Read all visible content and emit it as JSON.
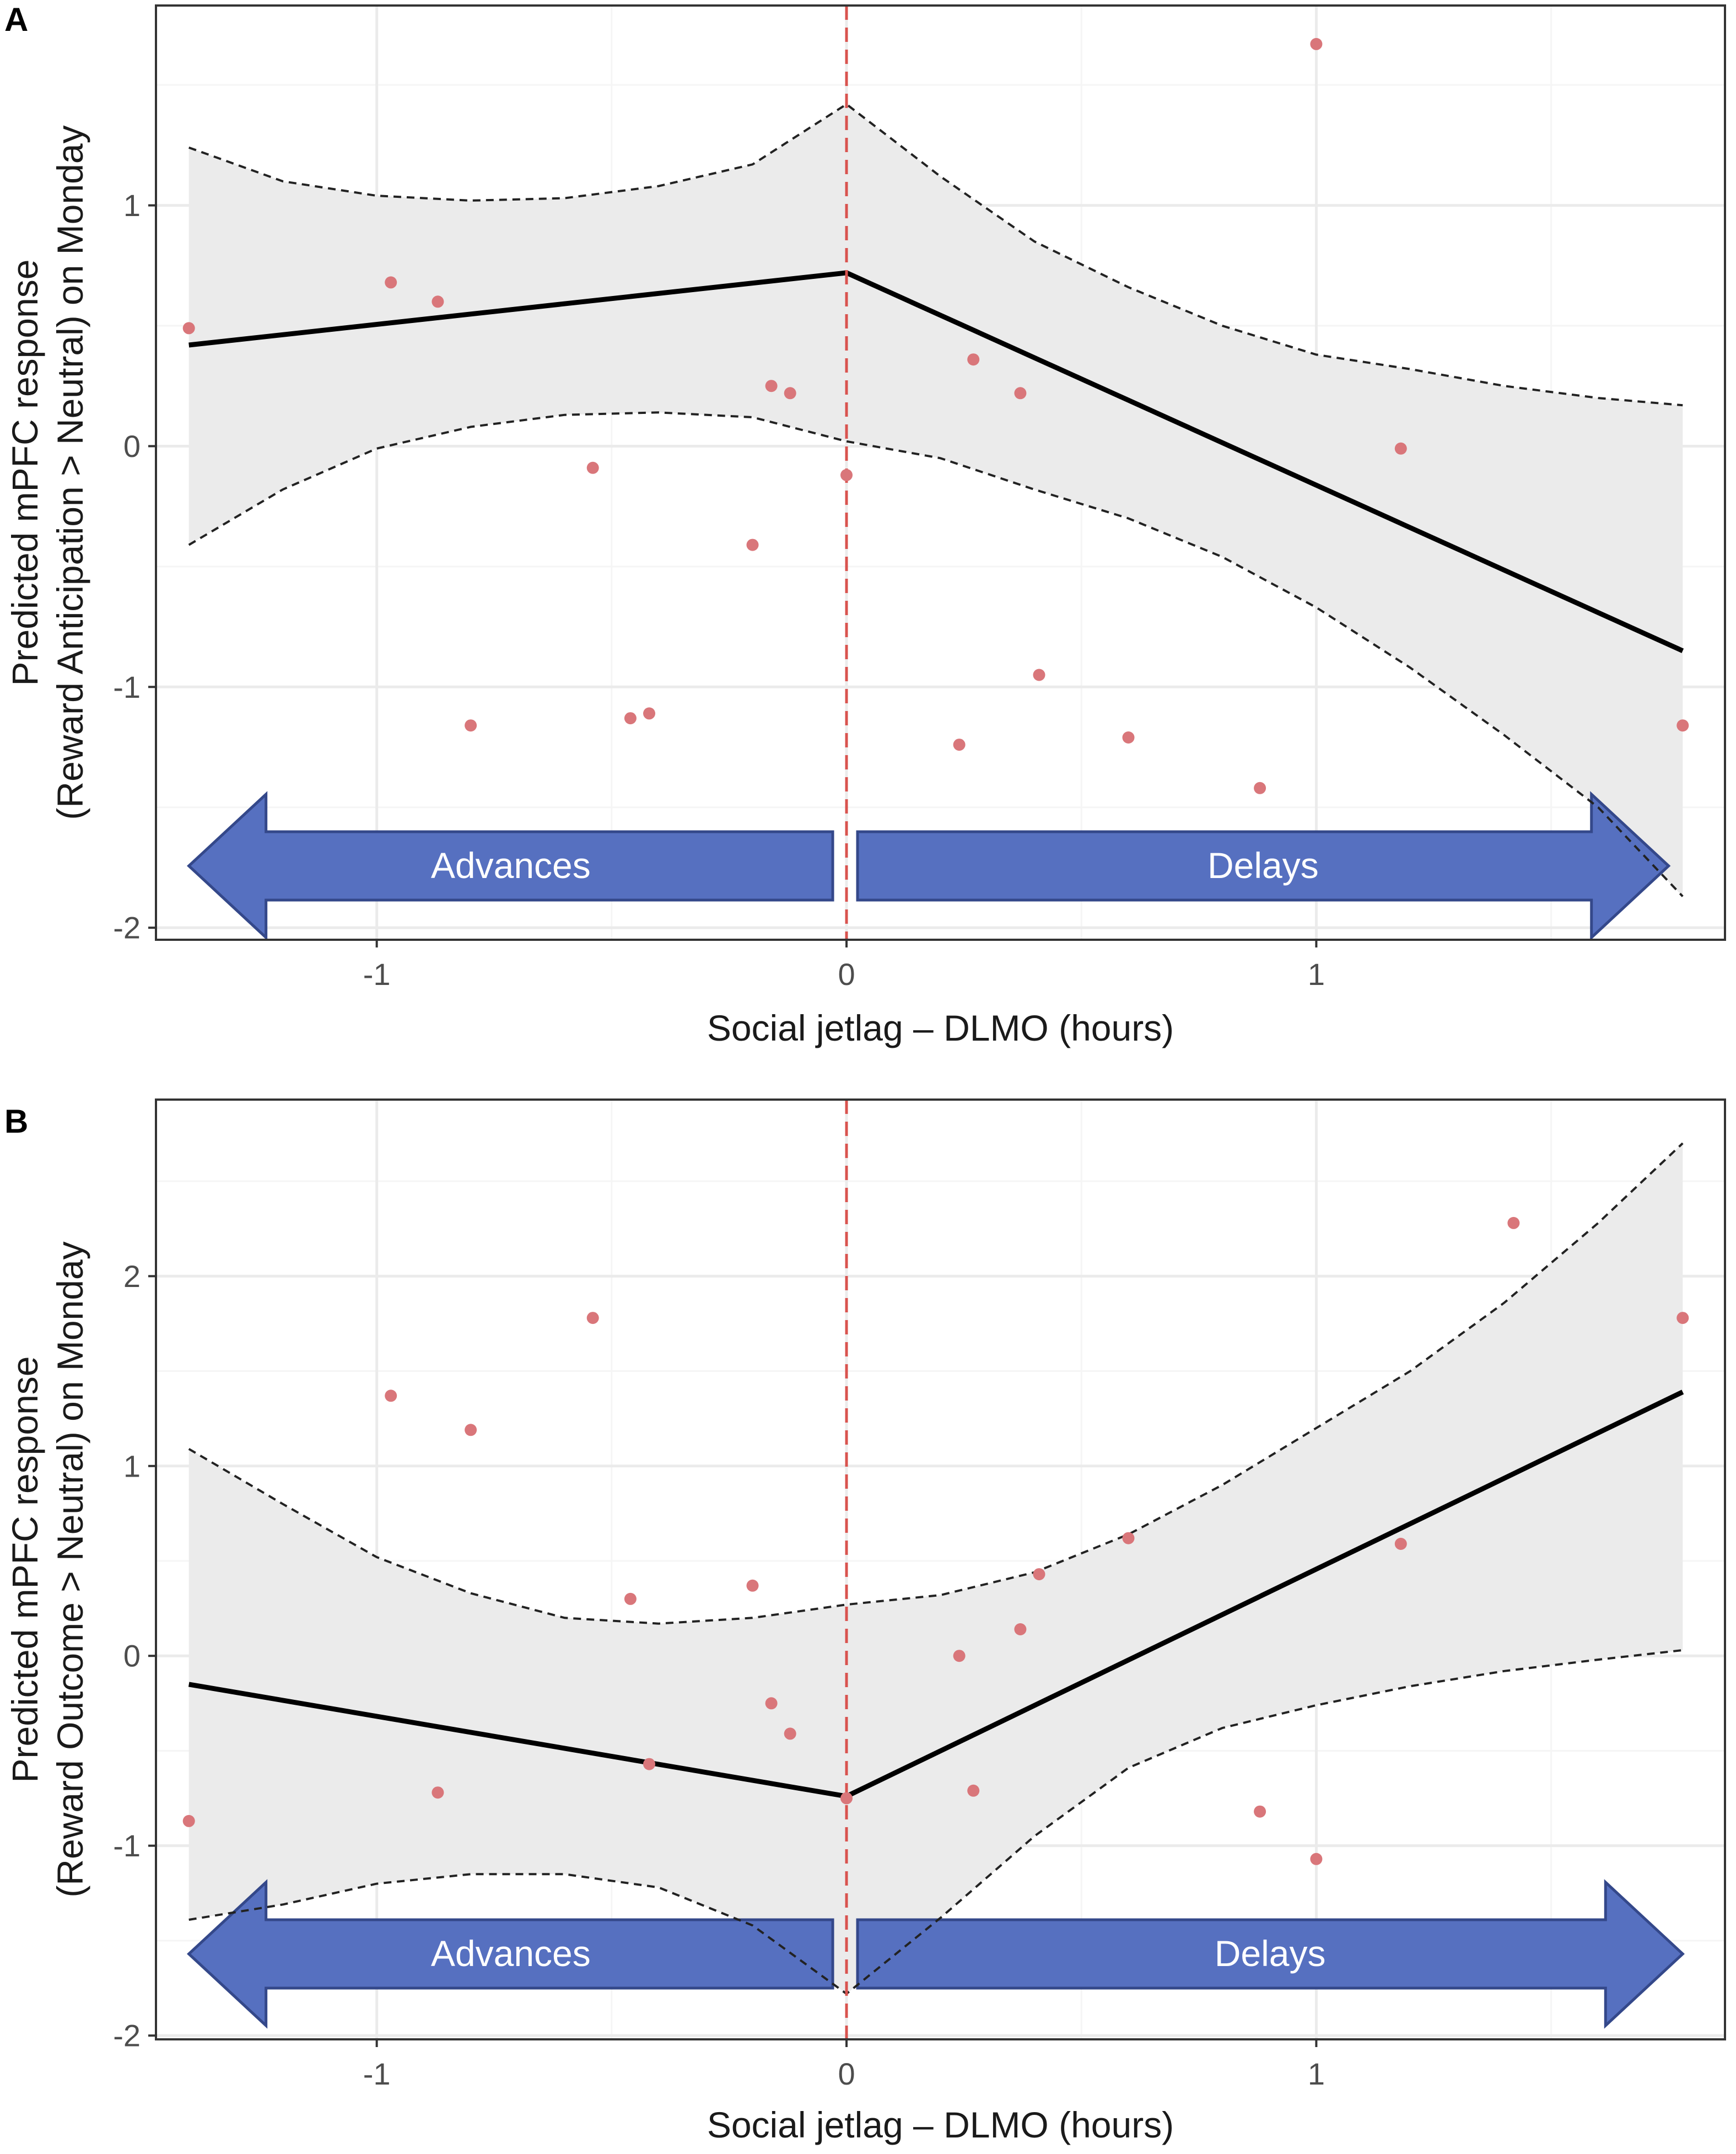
{
  "chart_data": [
    {
      "type": "line",
      "panel_label": "A",
      "xlabel": "Social jetlag – DLMO (hours)",
      "ylabel": [
        "Predicted mPFC response",
        "(Reward Anticipation > Neutral) on Monday"
      ],
      "xlim": [
        -1.47,
        1.87
      ],
      "ylim": [
        -2.05,
        1.83
      ],
      "xticks": [
        -1,
        0,
        1
      ],
      "xtick_labels": [
        "-1",
        "0",
        "1"
      ],
      "yticks": [
        -2,
        -1,
        0,
        1
      ],
      "ytick_labels": [
        "-2",
        "-1",
        "0",
        "1"
      ],
      "grid": true,
      "reference_line_x": 0,
      "series": [
        {
          "name": "fitted",
          "style": "solid",
          "x": [
            -1.4,
            0,
            1.78
          ],
          "y": [
            0.42,
            0.72,
            -0.85
          ]
        },
        {
          "name": "upper CI",
          "style": "dashed",
          "x": [
            -1.4,
            -1.2,
            -1.0,
            -0.8,
            -0.6,
            -0.4,
            -0.2,
            0,
            0.2,
            0.4,
            0.6,
            0.8,
            1.0,
            1.2,
            1.4,
            1.6,
            1.78
          ],
          "y": [
            1.24,
            1.1,
            1.04,
            1.02,
            1.03,
            1.08,
            1.17,
            1.42,
            1.12,
            0.85,
            0.66,
            0.5,
            0.38,
            0.32,
            0.25,
            0.2,
            0.17
          ]
        },
        {
          "name": "lower CI",
          "style": "dashed",
          "x": [
            -1.4,
            -1.2,
            -1.0,
            -0.8,
            -0.6,
            -0.4,
            -0.2,
            0,
            0.2,
            0.4,
            0.6,
            0.8,
            1.0,
            1.2,
            1.4,
            1.6,
            1.78
          ],
          "y": [
            -0.41,
            -0.18,
            -0.01,
            0.08,
            0.13,
            0.14,
            0.12,
            0.02,
            -0.05,
            -0.18,
            -0.3,
            -0.46,
            -0.67,
            -0.92,
            -1.2,
            -1.5,
            -1.87
          ]
        },
        {
          "name": "observations",
          "style": "points",
          "x": [
            -1.4,
            -0.97,
            -0.87,
            -0.8,
            -0.54,
            -0.46,
            -0.42,
            -0.2,
            -0.16,
            -0.12,
            0,
            0.24,
            0.27,
            0.37,
            0.41,
            0.6,
            0.88,
            1.0,
            1.18,
            1.78
          ],
          "y": [
            0.49,
            0.68,
            0.6,
            -1.16,
            -0.09,
            -1.13,
            -1.11,
            -0.41,
            0.25,
            0.22,
            -0.12,
            -1.24,
            0.36,
            0.22,
            -0.95,
            -1.21,
            -1.42,
            1.67,
            -0.01,
            -1.16
          ]
        }
      ],
      "arrows": [
        {
          "label": "Advances",
          "direction": "left",
          "x_from": 0,
          "x_to": -1.4
        },
        {
          "label": "Delays",
          "direction": "right",
          "x_from": 0,
          "x_to": 1.75
        }
      ]
    },
    {
      "type": "line",
      "panel_label": "B",
      "xlabel": "Social jetlag – DLMO (hours)",
      "ylabel": [
        "Predicted mPFC response",
        "(Reward Outcome > Neutral) on Monday"
      ],
      "xlim": [
        -1.47,
        1.87
      ],
      "ylim": [
        -2.02,
        2.93
      ],
      "xticks": [
        -1,
        0,
        1
      ],
      "xtick_labels": [
        "-1",
        "0",
        "1"
      ],
      "yticks": [
        -2,
        -1,
        0,
        1,
        2
      ],
      "ytick_labels": [
        "-2",
        "-1",
        "0",
        "1",
        "2"
      ],
      "grid": true,
      "reference_line_x": 0,
      "series": [
        {
          "name": "fitted",
          "style": "solid",
          "x": [
            -1.4,
            0,
            1.78
          ],
          "y": [
            -0.15,
            -0.74,
            1.39
          ]
        },
        {
          "name": "upper CI",
          "style": "dashed",
          "x": [
            -1.4,
            -1.2,
            -1.0,
            -0.8,
            -0.6,
            -0.4,
            -0.2,
            0,
            0.2,
            0.4,
            0.6,
            0.8,
            1.0,
            1.2,
            1.4,
            1.6,
            1.78
          ],
          "y": [
            1.09,
            0.8,
            0.52,
            0.33,
            0.2,
            0.17,
            0.2,
            0.27,
            0.32,
            0.44,
            0.64,
            0.9,
            1.2,
            1.5,
            1.86,
            2.28,
            2.7
          ]
        },
        {
          "name": "lower CI",
          "style": "dashed",
          "x": [
            -1.4,
            -1.2,
            -1.0,
            -0.8,
            -0.6,
            -0.4,
            -0.2,
            0,
            0.2,
            0.4,
            0.6,
            0.8,
            1.0,
            1.2,
            1.4,
            1.6,
            1.78
          ],
          "y": [
            -1.39,
            -1.31,
            -1.2,
            -1.15,
            -1.15,
            -1.22,
            -1.42,
            -1.78,
            -1.38,
            -0.95,
            -0.59,
            -0.38,
            -0.26,
            -0.16,
            -0.08,
            -0.02,
            0.03
          ]
        },
        {
          "name": "observations",
          "style": "points",
          "x": [
            -1.4,
            -0.97,
            -0.87,
            -0.8,
            -0.54,
            -0.46,
            -0.42,
            -0.2,
            -0.16,
            -0.12,
            0,
            0.24,
            0.27,
            0.37,
            0.41,
            0.6,
            0.88,
            1.0,
            1.18,
            1.42,
            1.78
          ],
          "y": [
            -0.87,
            1.37,
            -0.72,
            1.19,
            1.78,
            0.3,
            -0.57,
            0.37,
            -0.25,
            -0.41,
            -0.75,
            0.0,
            -0.71,
            0.14,
            0.43,
            0.62,
            -0.82,
            -1.07,
            0.59,
            2.28,
            1.78
          ]
        }
      ],
      "arrows": [
        {
          "label": "Advances",
          "direction": "left",
          "x_from": 0,
          "x_to": -1.4
        },
        {
          "label": "Delays",
          "direction": "right",
          "x_from": 0,
          "x_to": 1.78
        }
      ]
    }
  ],
  "colors": {
    "panel_background": "#ffffff",
    "panel_border": "#333333",
    "grid_major": "#ebebeb",
    "grid_minor": "#f5f5f5",
    "ci_fill": "#ebebeb",
    "fit_line": "#000000",
    "ci_line": "#222222",
    "points": "#d9767a",
    "reference_line": "#d9534f",
    "arrow_fill": "#5670c0",
    "arrow_stroke": "#34488a",
    "arrow_text": "#ffffff"
  }
}
